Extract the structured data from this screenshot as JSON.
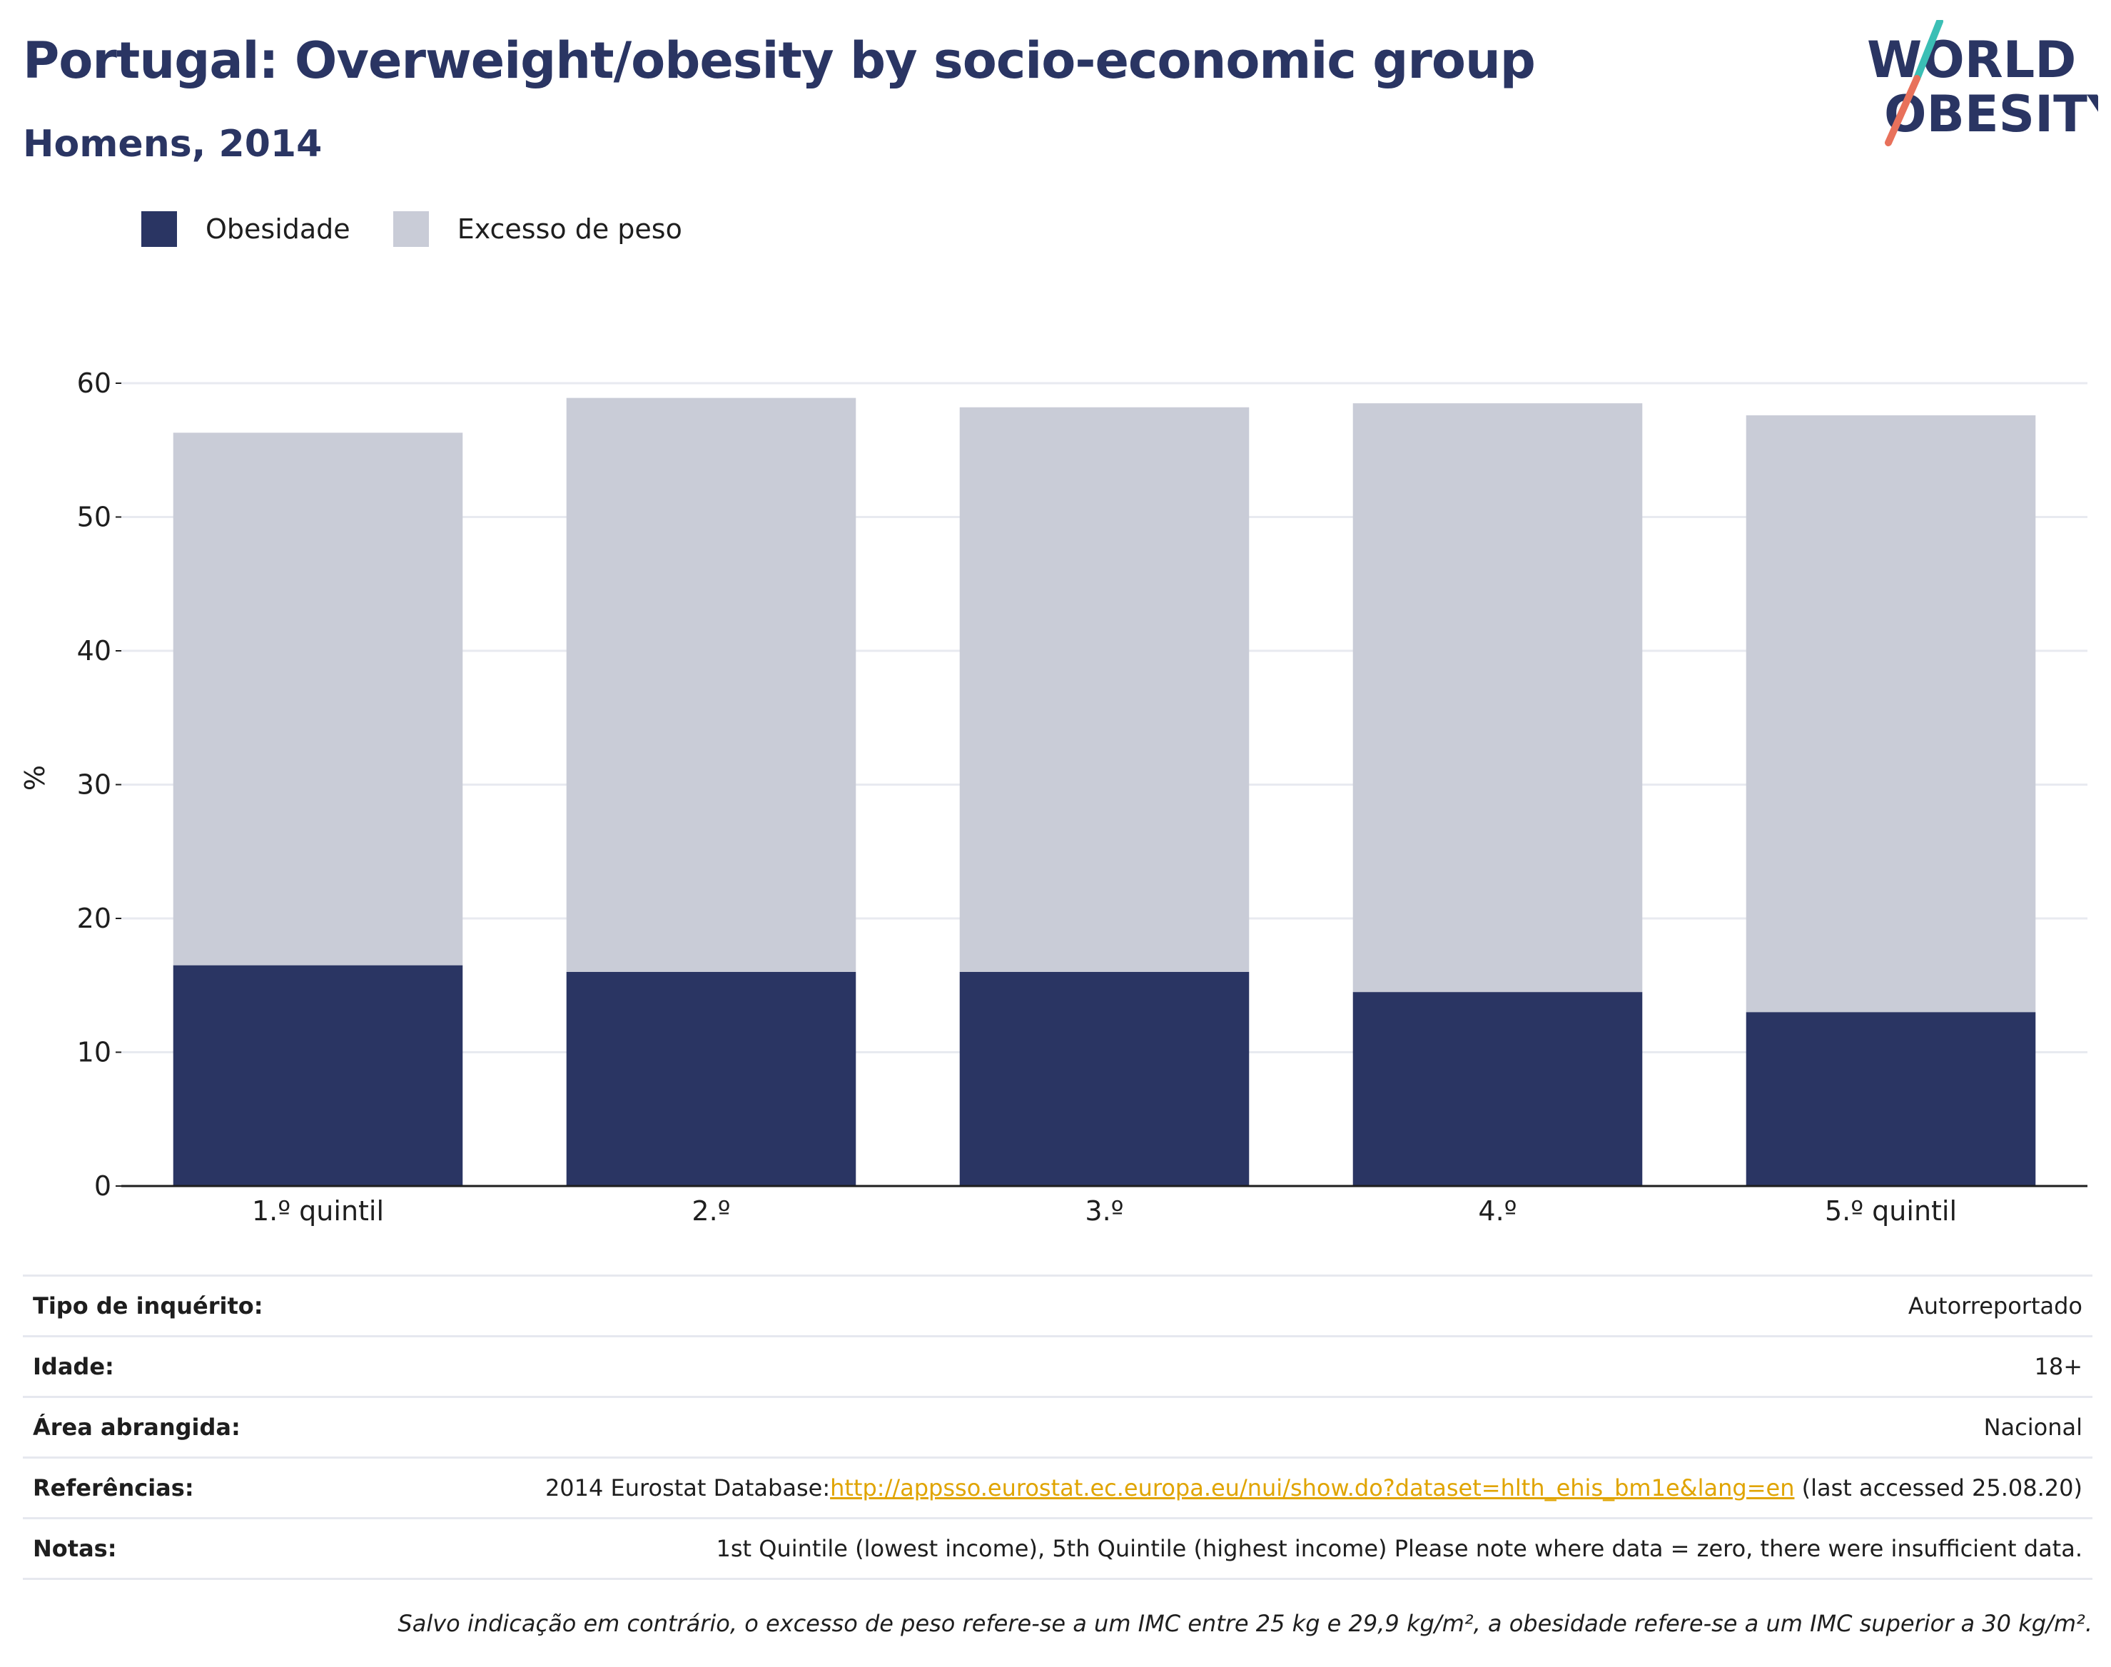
{
  "header": {
    "title": "Portugal: Overweight/obesity by socio-economic group",
    "subtitle": "Homens, 2014",
    "logo_line1": "WORLD",
    "logo_line2": "OBESITY"
  },
  "colors": {
    "obesity": "#2a3563",
    "overweight": "#c9ccd7",
    "title": "#2a3563",
    "logo_teal": "#3bbfb5",
    "logo_coral": "#e8715b",
    "link": "#e0a400"
  },
  "legend": {
    "items": [
      {
        "label": "Obesidade",
        "color": "#2a3563"
      },
      {
        "label": "Excesso de peso",
        "color": "#c9ccd7"
      }
    ]
  },
  "chart_data": {
    "type": "bar",
    "stacked": true,
    "categories": [
      "1.º quintil",
      "2.º",
      "3.º",
      "4.º",
      "5.º quintil"
    ],
    "series": [
      {
        "name": "Obesidade",
        "values": [
          16.5,
          16.0,
          16.0,
          14.5,
          13.0
        ]
      },
      {
        "name": "Excesso de peso",
        "values": [
          39.8,
          42.9,
          42.2,
          44.0,
          44.6
        ]
      }
    ],
    "ylabel": "%",
    "ylim": [
      0,
      60
    ],
    "yticks": [
      0,
      10,
      20,
      30,
      40,
      50,
      60
    ],
    "grid": true,
    "legend_position": "top-left"
  },
  "info": {
    "survey_label": "Tipo de inquérito:",
    "survey_value": "Autorreportado",
    "age_label": "Idade:",
    "age_value": "18+",
    "area_label": "Área abrangida:",
    "area_value": "Nacional",
    "refs_label": "Referências:",
    "refs_prefix": "2014 Eurostat Database:",
    "refs_link": "http://appsso.eurostat.ec.europa.eu/nui/show.do?dataset=hlth_ehis_bm1e&lang=en",
    "refs_suffix": " (last accessed 25.08.20)",
    "notes_label": "Notas:",
    "notes_value": "1st Quintile (lowest income), 5th Quintile (highest income) Please note where data = zero, there were insufficient data.",
    "footnote": "Salvo indicação em contrário, o excesso de peso refere-se a um IMC entre 25 kg e 29,9 kg/m², a obesidade refere-se a um IMC superior a 30 kg/m²."
  }
}
